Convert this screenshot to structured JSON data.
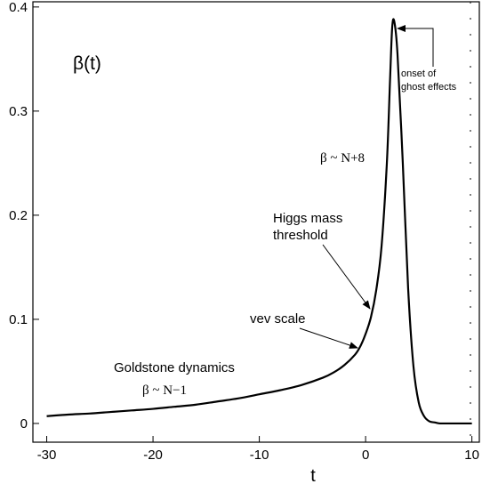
{
  "chart_data": {
    "type": "line",
    "title": "",
    "xlabel": "t",
    "ylabel": "",
    "xlim": [
      -31.3,
      10.7
    ],
    "ylim": [
      -0.018,
      0.405
    ],
    "grid": false,
    "xticks": [
      -30,
      -20,
      -10,
      0,
      10
    ],
    "xtick_labels": [
      "-30",
      "-20",
      "-10",
      "0",
      "10"
    ],
    "yticks": [
      0,
      0.1,
      0.2,
      0.3,
      0.4
    ],
    "ytick_labels": [
      "0",
      "0.1",
      "0.2",
      "0.3",
      "0.4"
    ],
    "series": [
      {
        "x": [
          -30,
          -28,
          -26,
          -24,
          -22,
          -20,
          -18,
          -16,
          -14,
          -12,
          -10,
          -8,
          -6,
          -4,
          -3,
          -2,
          -1,
          -0.5,
          0,
          0.5,
          1,
          1.5,
          2,
          2.3,
          2.5,
          2.7,
          3,
          3.5,
          4,
          4.5,
          5,
          5.5,
          6,
          6.5,
          7,
          8,
          9,
          10
        ],
        "y": [
          0.007,
          0.0085,
          0.0095,
          0.011,
          0.0125,
          0.014,
          0.016,
          0.018,
          0.021,
          0.024,
          0.028,
          0.032,
          0.037,
          0.044,
          0.049,
          0.056,
          0.066,
          0.074,
          0.086,
          0.102,
          0.128,
          0.17,
          0.25,
          0.33,
          0.38,
          0.386,
          0.355,
          0.25,
          0.13,
          0.055,
          0.02,
          0.007,
          0.002,
          0.001,
          0.0,
          0.0,
          0.0,
          0.0
        ]
      }
    ],
    "annotations": [
      {
        "text": "β(t)",
        "style": "title"
      },
      {
        "text": "onset of",
        "style": "small"
      },
      {
        "text": "ghost effects",
        "style": "small"
      },
      {
        "text": "β ~ N+8",
        "style": "serif"
      },
      {
        "text": "Higgs mass",
        "style": "sans"
      },
      {
        "text": "threshold",
        "style": "sans"
      },
      {
        "text": "vev scale",
        "style": "sans"
      },
      {
        "text": "Goldstone dynamics",
        "style": "sans"
      },
      {
        "text": "β ~ N−1",
        "style": "serif"
      }
    ]
  }
}
